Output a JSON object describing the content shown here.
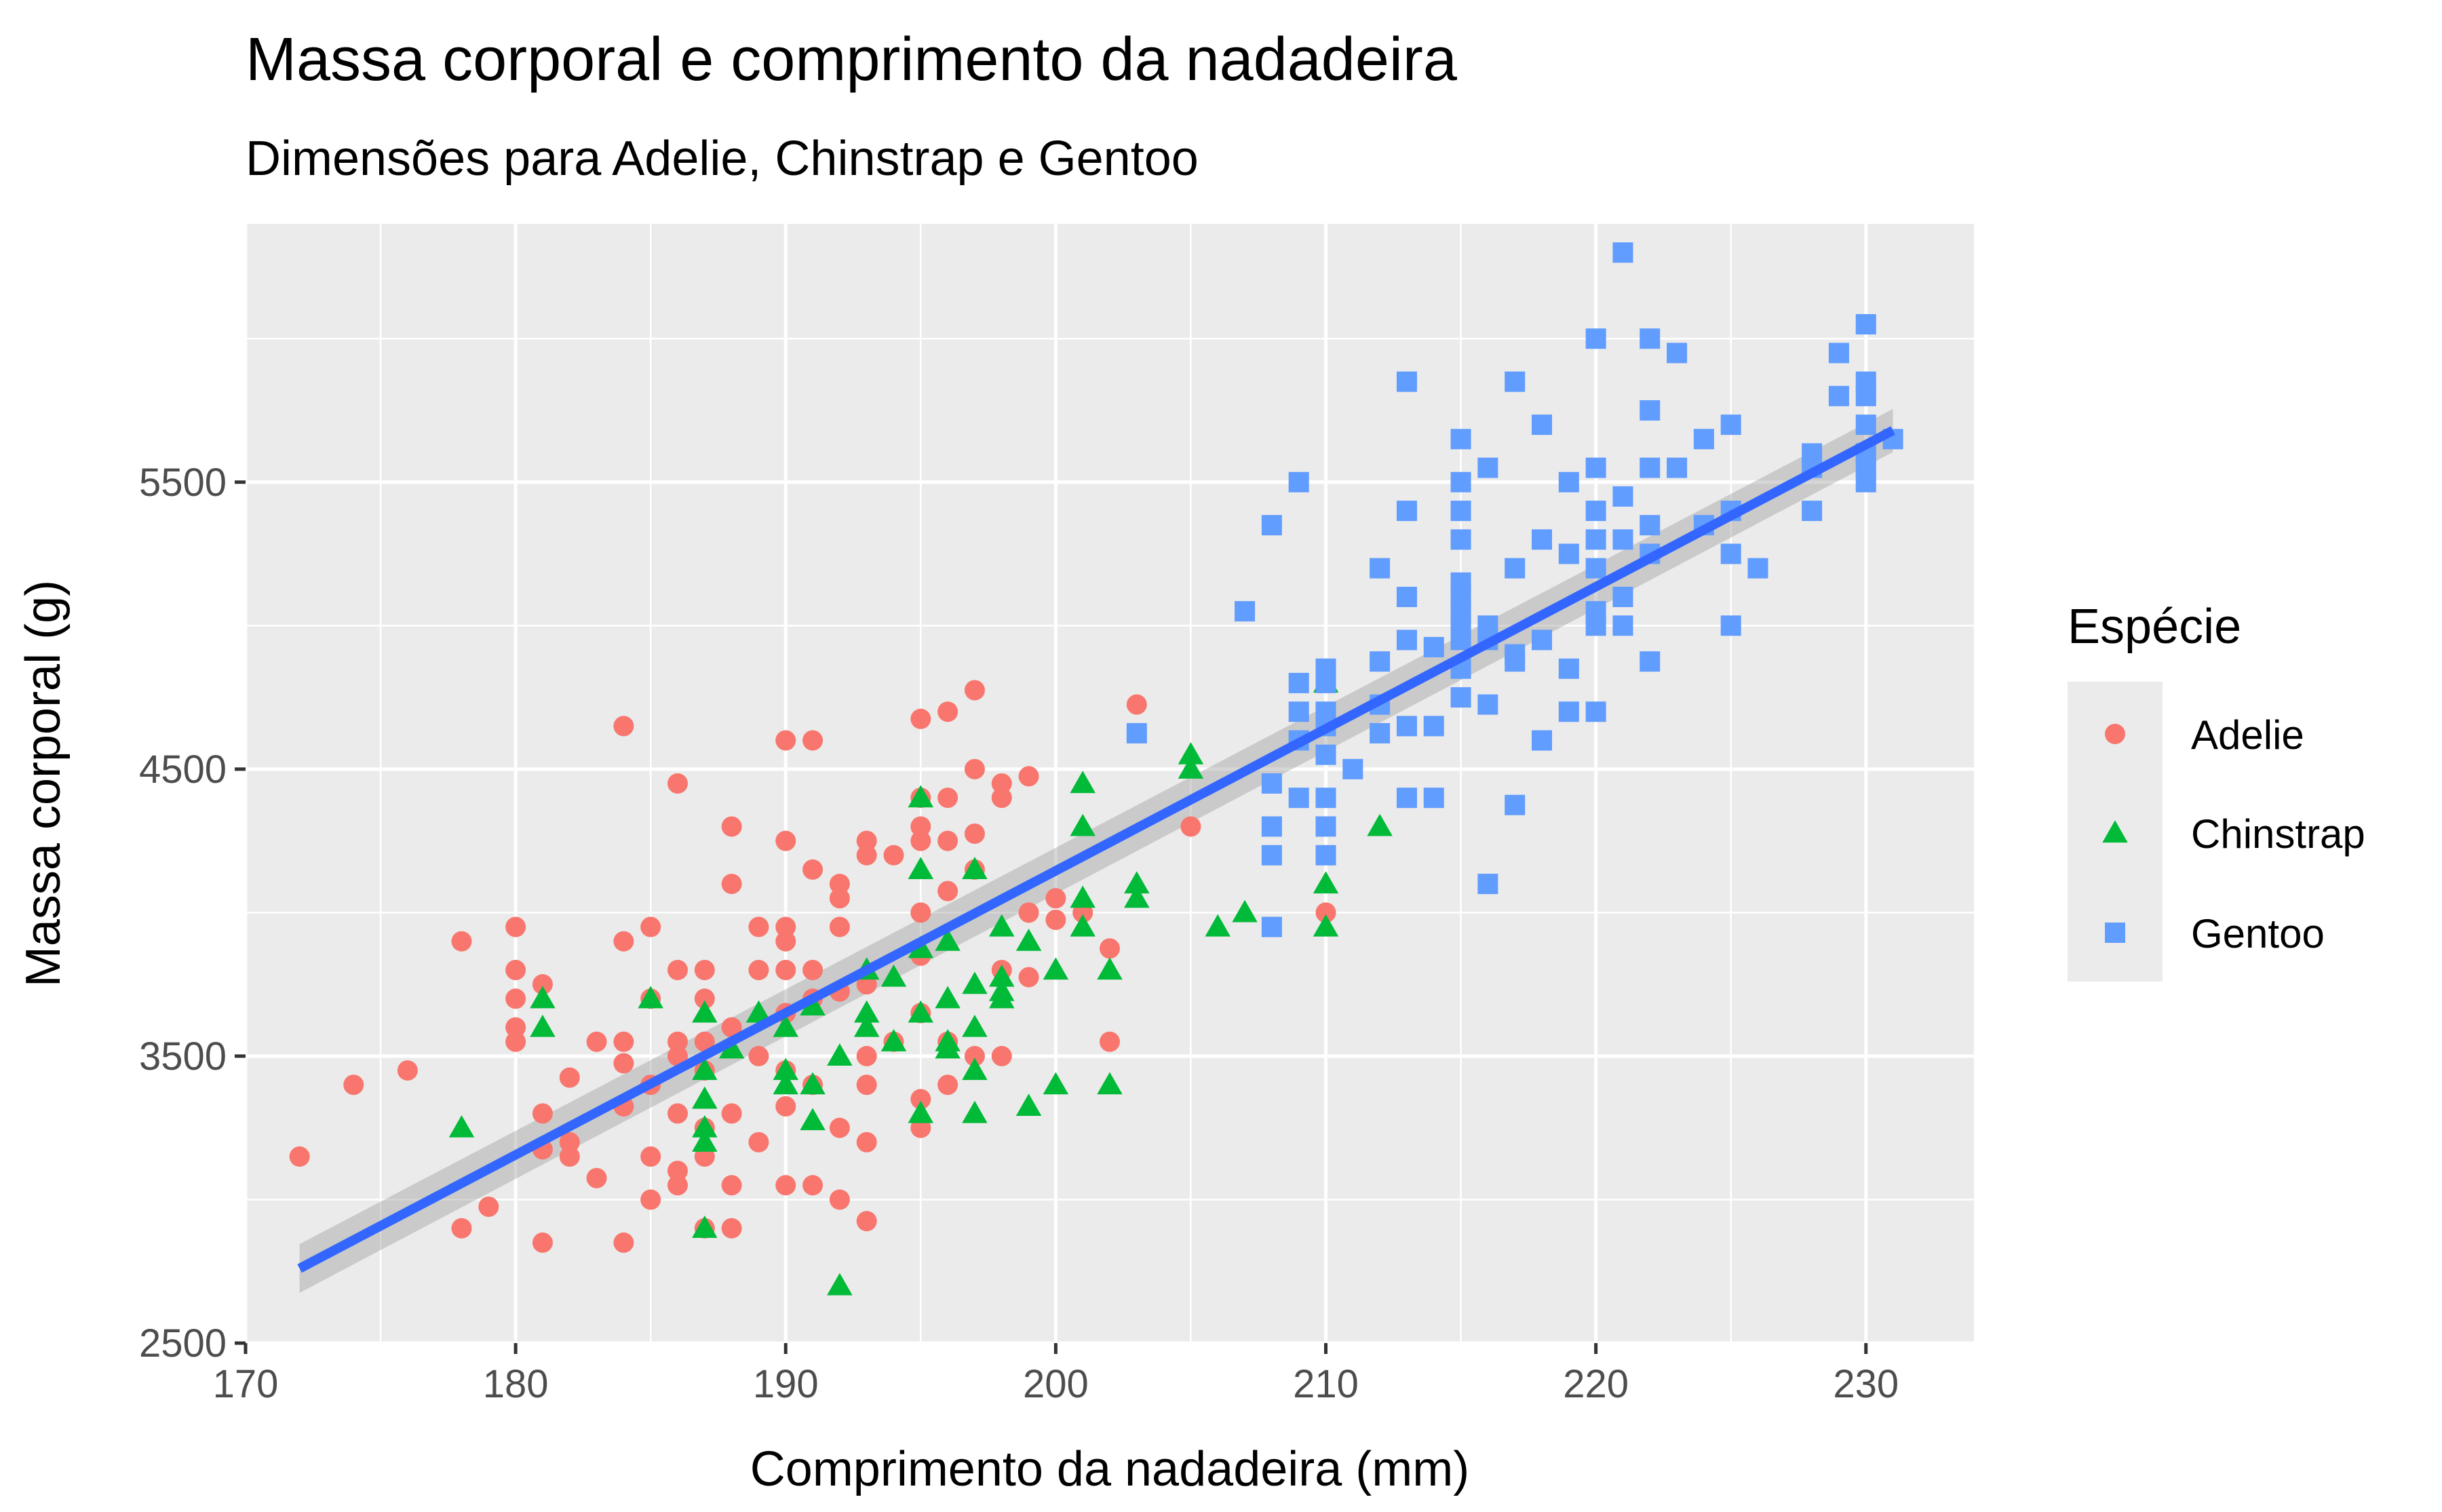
{
  "chart_data": {
    "type": "scatter",
    "title": "Massa corporal e comprimento da nadadeira",
    "subtitle": "Dimensões para Adelie, Chinstrap e Gentoo",
    "xlabel": "Comprimento da nadadeira (mm)",
    "ylabel": "Massa corporal (g)",
    "xlim": [
      170,
      234
    ],
    "ylim": [
      2500,
      6400
    ],
    "x_ticks": [
      170,
      180,
      190,
      200,
      210,
      220,
      230
    ],
    "y_ticks": [
      2500,
      3500,
      4500,
      5500
    ],
    "x_tick_labels": [
      "170",
      "180",
      "190",
      "200",
      "210",
      "220",
      "230"
    ],
    "y_tick_labels": [
      "2500",
      "3500",
      "4500",
      "5500"
    ],
    "grid": true,
    "legend": {
      "title": "Espécie",
      "position": "right",
      "entries": [
        "Adelie",
        "Chinstrap",
        "Gentoo"
      ]
    },
    "colors": {
      "Adelie": "#F8766D",
      "Chinstrap": "#00BA38",
      "Gentoo": "#619CFF",
      "fit": "#3366FF"
    },
    "regression": {
      "x": [
        172,
        231
      ],
      "y": [
        2760,
        5680
      ],
      "ci_halfwidth": [
        85,
        75
      ]
    },
    "series": [
      {
        "name": "Adelie",
        "shape": "circle",
        "points": [
          [
            172,
            3150
          ],
          [
            174,
            3400
          ],
          [
            176,
            3450
          ],
          [
            178,
            3900
          ],
          [
            178,
            2900
          ],
          [
            179,
            2975
          ],
          [
            180,
            3950
          ],
          [
            180,
            3800
          ],
          [
            180,
            3700
          ],
          [
            180,
            3600
          ],
          [
            180,
            3550
          ],
          [
            181,
            3750
          ],
          [
            181,
            3300
          ],
          [
            181,
            3175
          ],
          [
            181,
            2850
          ],
          [
            182,
            3425
          ],
          [
            182,
            3200
          ],
          [
            182,
            3150
          ],
          [
            183,
            3550
          ],
          [
            183,
            3075
          ],
          [
            184,
            4650
          ],
          [
            184,
            3900
          ],
          [
            184,
            3550
          ],
          [
            184,
            3475
          ],
          [
            184,
            3325
          ],
          [
            184,
            2850
          ],
          [
            185,
            3950
          ],
          [
            185,
            3700
          ],
          [
            185,
            3400
          ],
          [
            185,
            3150
          ],
          [
            185,
            3000
          ],
          [
            186,
            4450
          ],
          [
            186,
            3800
          ],
          [
            186,
            3550
          ],
          [
            186,
            3500
          ],
          [
            186,
            3300
          ],
          [
            186,
            3100
          ],
          [
            186,
            3050
          ],
          [
            187,
            3800
          ],
          [
            187,
            3700
          ],
          [
            187,
            3550
          ],
          [
            187,
            3450
          ],
          [
            187,
            3250
          ],
          [
            187,
            3150
          ],
          [
            187,
            2900
          ],
          [
            188,
            4300
          ],
          [
            188,
            4100
          ],
          [
            188,
            3600
          ],
          [
            188,
            3300
          ],
          [
            188,
            3050
          ],
          [
            188,
            2900
          ],
          [
            189,
            3950
          ],
          [
            189,
            3800
          ],
          [
            189,
            3500
          ],
          [
            189,
            3200
          ],
          [
            190,
            4600
          ],
          [
            190,
            4250
          ],
          [
            190,
            3950
          ],
          [
            190,
            3900
          ],
          [
            190,
            3800
          ],
          [
            190,
            3650
          ],
          [
            190,
            3450
          ],
          [
            190,
            3325
          ],
          [
            190,
            3050
          ],
          [
            191,
            4600
          ],
          [
            191,
            4150
          ],
          [
            191,
            3800
          ],
          [
            191,
            3700
          ],
          [
            191,
            3400
          ],
          [
            191,
            3050
          ],
          [
            192,
            4100
          ],
          [
            192,
            4050
          ],
          [
            192,
            3950
          ],
          [
            192,
            3725
          ],
          [
            192,
            3250
          ],
          [
            192,
            3000
          ],
          [
            193,
            4250
          ],
          [
            193,
            4200
          ],
          [
            193,
            3750
          ],
          [
            193,
            3500
          ],
          [
            193,
            3400
          ],
          [
            193,
            3200
          ],
          [
            193,
            2925
          ],
          [
            194,
            4200
          ],
          [
            194,
            3550
          ],
          [
            195,
            4675
          ],
          [
            195,
            4400
          ],
          [
            195,
            4300
          ],
          [
            195,
            4250
          ],
          [
            195,
            4000
          ],
          [
            195,
            3850
          ],
          [
            195,
            3650
          ],
          [
            195,
            3350
          ],
          [
            195,
            3250
          ],
          [
            196,
            4700
          ],
          [
            196,
            4400
          ],
          [
            196,
            4250
          ],
          [
            196,
            4075
          ],
          [
            196,
            3550
          ],
          [
            196,
            3400
          ],
          [
            197,
            4775
          ],
          [
            197,
            4500
          ],
          [
            197,
            4275
          ],
          [
            197,
            4150
          ],
          [
            197,
            3500
          ],
          [
            198,
            4450
          ],
          [
            198,
            4400
          ],
          [
            198,
            3800
          ],
          [
            198,
            3500
          ],
          [
            199,
            4475
          ],
          [
            199,
            4000
          ],
          [
            199,
            3775
          ],
          [
            200,
            4050
          ],
          [
            200,
            3975
          ],
          [
            201,
            4000
          ],
          [
            202,
            3875
          ],
          [
            202,
            3550
          ],
          [
            203,
            4725
          ],
          [
            205,
            4300
          ],
          [
            210,
            4000
          ]
        ]
      },
      {
        "name": "Chinstrap",
        "shape": "triangle",
        "points": [
          [
            178,
            3250
          ],
          [
            181,
            3700
          ],
          [
            181,
            3600
          ],
          [
            185,
            3700
          ],
          [
            187,
            3650
          ],
          [
            187,
            3450
          ],
          [
            187,
            3350
          ],
          [
            187,
            3250
          ],
          [
            187,
            3200
          ],
          [
            187,
            2900
          ],
          [
            188,
            3525
          ],
          [
            189,
            3650
          ],
          [
            190,
            3600
          ],
          [
            190,
            3450
          ],
          [
            190,
            3400
          ],
          [
            191,
            3675
          ],
          [
            191,
            3400
          ],
          [
            191,
            3275
          ],
          [
            192,
            3500
          ],
          [
            192,
            2700
          ],
          [
            193,
            3800
          ],
          [
            193,
            3650
          ],
          [
            193,
            3600
          ],
          [
            194,
            3775
          ],
          [
            194,
            3550
          ],
          [
            195,
            4400
          ],
          [
            195,
            4150
          ],
          [
            195,
            3875
          ],
          [
            195,
            3650
          ],
          [
            195,
            3300
          ],
          [
            196,
            3900
          ],
          [
            196,
            3700
          ],
          [
            196,
            3550
          ],
          [
            196,
            3525
          ],
          [
            197,
            4150
          ],
          [
            197,
            3750
          ],
          [
            197,
            3600
          ],
          [
            197,
            3450
          ],
          [
            197,
            3300
          ],
          [
            198,
            3950
          ],
          [
            198,
            3775
          ],
          [
            198,
            3725
          ],
          [
            198,
            3700
          ],
          [
            199,
            3900
          ],
          [
            199,
            3325
          ],
          [
            200,
            3800
          ],
          [
            200,
            3400
          ],
          [
            201,
            4450
          ],
          [
            201,
            4300
          ],
          [
            201,
            4050
          ],
          [
            201,
            3950
          ],
          [
            202,
            3800
          ],
          [
            202,
            3400
          ],
          [
            203,
            4100
          ],
          [
            203,
            4050
          ],
          [
            205,
            4550
          ],
          [
            205,
            4500
          ],
          [
            206,
            3950
          ],
          [
            207,
            4000
          ],
          [
            210,
            4800
          ],
          [
            210,
            4100
          ],
          [
            210,
            3950
          ],
          [
            212,
            4300
          ]
        ]
      },
      {
        "name": "Gentoo",
        "shape": "square",
        "points": [
          [
            203,
            4625
          ],
          [
            207,
            5050
          ],
          [
            208,
            5350
          ],
          [
            208,
            4450
          ],
          [
            208,
            4300
          ],
          [
            208,
            4200
          ],
          [
            208,
            3950
          ],
          [
            209,
            5500
          ],
          [
            209,
            4800
          ],
          [
            209,
            4700
          ],
          [
            209,
            4600
          ],
          [
            209,
            4400
          ],
          [
            210,
            4850
          ],
          [
            210,
            4800
          ],
          [
            210,
            4700
          ],
          [
            210,
            4650
          ],
          [
            210,
            4550
          ],
          [
            210,
            4400
          ],
          [
            210,
            4300
          ],
          [
            210,
            4200
          ],
          [
            211,
            4500
          ],
          [
            212,
            5200
          ],
          [
            212,
            4875
          ],
          [
            212,
            4725
          ],
          [
            212,
            4625
          ],
          [
            213,
            5850
          ],
          [
            213,
            5400
          ],
          [
            213,
            5100
          ],
          [
            213,
            4950
          ],
          [
            213,
            4650
          ],
          [
            213,
            4400
          ],
          [
            214,
            4925
          ],
          [
            214,
            4650
          ],
          [
            214,
            4400
          ],
          [
            215,
            5650
          ],
          [
            215,
            5500
          ],
          [
            215,
            5400
          ],
          [
            215,
            5300
          ],
          [
            215,
            5150
          ],
          [
            215,
            5100
          ],
          [
            215,
            5050
          ],
          [
            215,
            5000
          ],
          [
            215,
            4950
          ],
          [
            215,
            4850
          ],
          [
            215,
            4750
          ],
          [
            216,
            5550
          ],
          [
            216,
            5000
          ],
          [
            216,
            4950
          ],
          [
            216,
            4725
          ],
          [
            216,
            4100
          ],
          [
            217,
            5850
          ],
          [
            217,
            5200
          ],
          [
            217,
            4900
          ],
          [
            217,
            4875
          ],
          [
            217,
            4375
          ],
          [
            218,
            5700
          ],
          [
            218,
            5300
          ],
          [
            218,
            4950
          ],
          [
            218,
            4600
          ],
          [
            219,
            5500
          ],
          [
            219,
            5250
          ],
          [
            219,
            4850
          ],
          [
            219,
            4700
          ],
          [
            220,
            6000
          ],
          [
            220,
            5550
          ],
          [
            220,
            5400
          ],
          [
            220,
            5300
          ],
          [
            220,
            5200
          ],
          [
            220,
            5050
          ],
          [
            220,
            5000
          ],
          [
            220,
            4700
          ],
          [
            221,
            6300
          ],
          [
            221,
            5450
          ],
          [
            221,
            5300
          ],
          [
            221,
            5100
          ],
          [
            221,
            5000
          ],
          [
            222,
            6000
          ],
          [
            222,
            5750
          ],
          [
            222,
            5550
          ],
          [
            222,
            5350
          ],
          [
            222,
            5250
          ],
          [
            222,
            4875
          ],
          [
            223,
            5950
          ],
          [
            223,
            5550
          ],
          [
            224,
            5650
          ],
          [
            224,
            5350
          ],
          [
            225,
            5700
          ],
          [
            225,
            5400
          ],
          [
            225,
            5250
          ],
          [
            225,
            5000
          ],
          [
            226,
            5200
          ],
          [
            228,
            5600
          ],
          [
            228,
            5550
          ],
          [
            228,
            5400
          ],
          [
            229,
            5950
          ],
          [
            229,
            5800
          ],
          [
            230,
            6050
          ],
          [
            230,
            5850
          ],
          [
            230,
            5800
          ],
          [
            230,
            5700
          ],
          [
            230,
            5600
          ],
          [
            230,
            5550
          ],
          [
            230,
            5500
          ],
          [
            231,
            5650
          ]
        ]
      }
    ]
  }
}
